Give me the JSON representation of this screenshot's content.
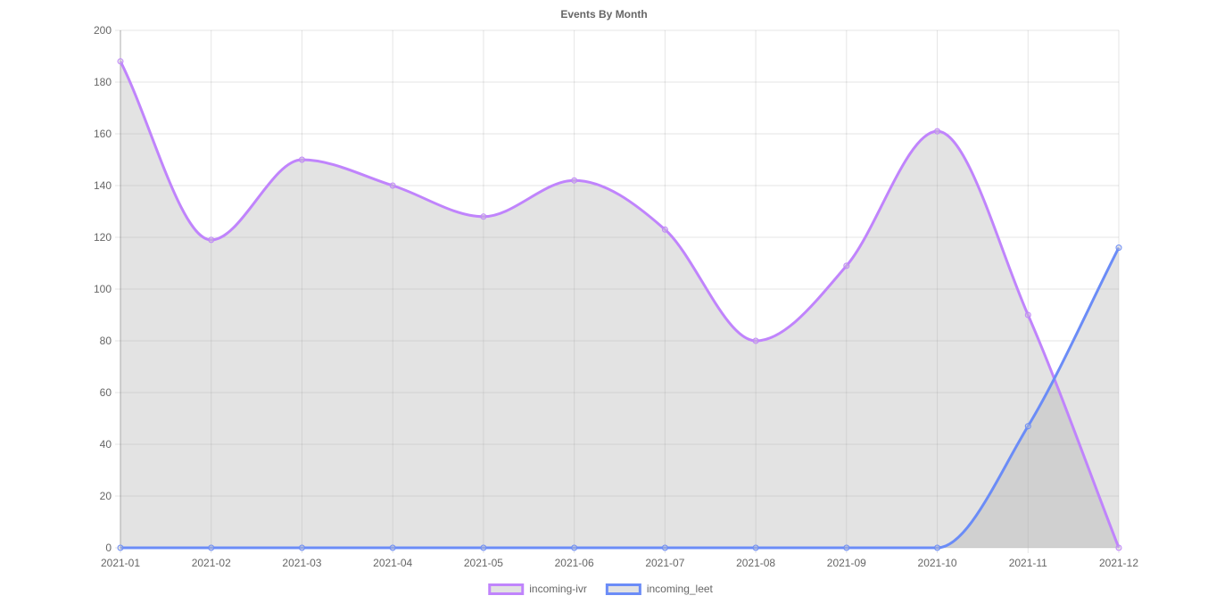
{
  "chart_data": {
    "type": "line",
    "title": "Events By Month",
    "x": [
      "2021-01",
      "2021-02",
      "2021-03",
      "2021-04",
      "2021-05",
      "2021-06",
      "2021-07",
      "2021-08",
      "2021-09",
      "2021-10",
      "2021-11",
      "2021-12"
    ],
    "series": [
      {
        "name": "incoming-ivr",
        "values": [
          188,
          119,
          150,
          140,
          128,
          142,
          123,
          80,
          109,
          161,
          90,
          0
        ],
        "color": "#c084fc"
      },
      {
        "name": "incoming_leet",
        "values": [
          0,
          0,
          0,
          0,
          0,
          0,
          0,
          0,
          0,
          0,
          47,
          116
        ],
        "color": "#6b8cf7"
      }
    ],
    "fill": "#e2e2e2",
    "ylim": [
      0,
      200
    ],
    "yticks": [
      0,
      20,
      40,
      60,
      80,
      100,
      120,
      140,
      160,
      180,
      200
    ],
    "grid": true,
    "smooth": true,
    "legend_position": "bottom"
  }
}
